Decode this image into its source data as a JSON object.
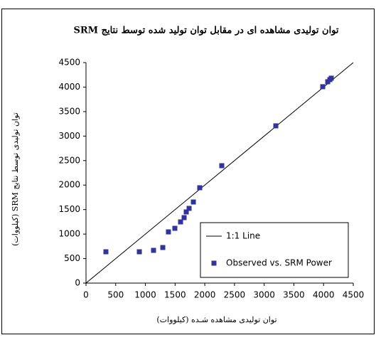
{
  "chart_data": {
    "type": "scatter",
    "title": "توان تولیدی مشاهده ای در مقابل توان تولید شده توسط نتایج SRM",
    "xlabel": "توان تولیدی مشاهده شـده (کیلووات)",
    "ylabel": "توان تولیدی توسط نتایج SRM (کیلووات)",
    "xlim": [
      0,
      4500
    ],
    "ylim": [
      0,
      4500
    ],
    "xticks": [
      0,
      500,
      1000,
      1500,
      2000,
      2500,
      3000,
      3500,
      4000,
      4500
    ],
    "yticks": [
      0,
      500,
      1000,
      1500,
      2000,
      2500,
      3000,
      3500,
      4000,
      4500
    ],
    "grid": false,
    "legend": "lower right",
    "series": [
      {
        "name": "1:1 Line",
        "color": "#000000",
        "mode": "line",
        "x": [
          0,
          4500
        ],
        "values": [
          0,
          4500
        ]
      },
      {
        "name": "Observed vs. SRM Power",
        "color": "#333399",
        "mode": "markers",
        "x": [
          335,
          898,
          1137,
          1293,
          1388,
          1496,
          1592,
          1652,
          1688,
          1736,
          1808,
          1915,
          2286,
          3196,
          3986,
          4070,
          4106,
          4130
        ],
        "values": [
          639,
          639,
          668,
          726,
          1045,
          1118,
          1249,
          1336,
          1452,
          1525,
          1655,
          1946,
          2396,
          3209,
          4008,
          4109,
          4153,
          4182
        ]
      }
    ]
  }
}
